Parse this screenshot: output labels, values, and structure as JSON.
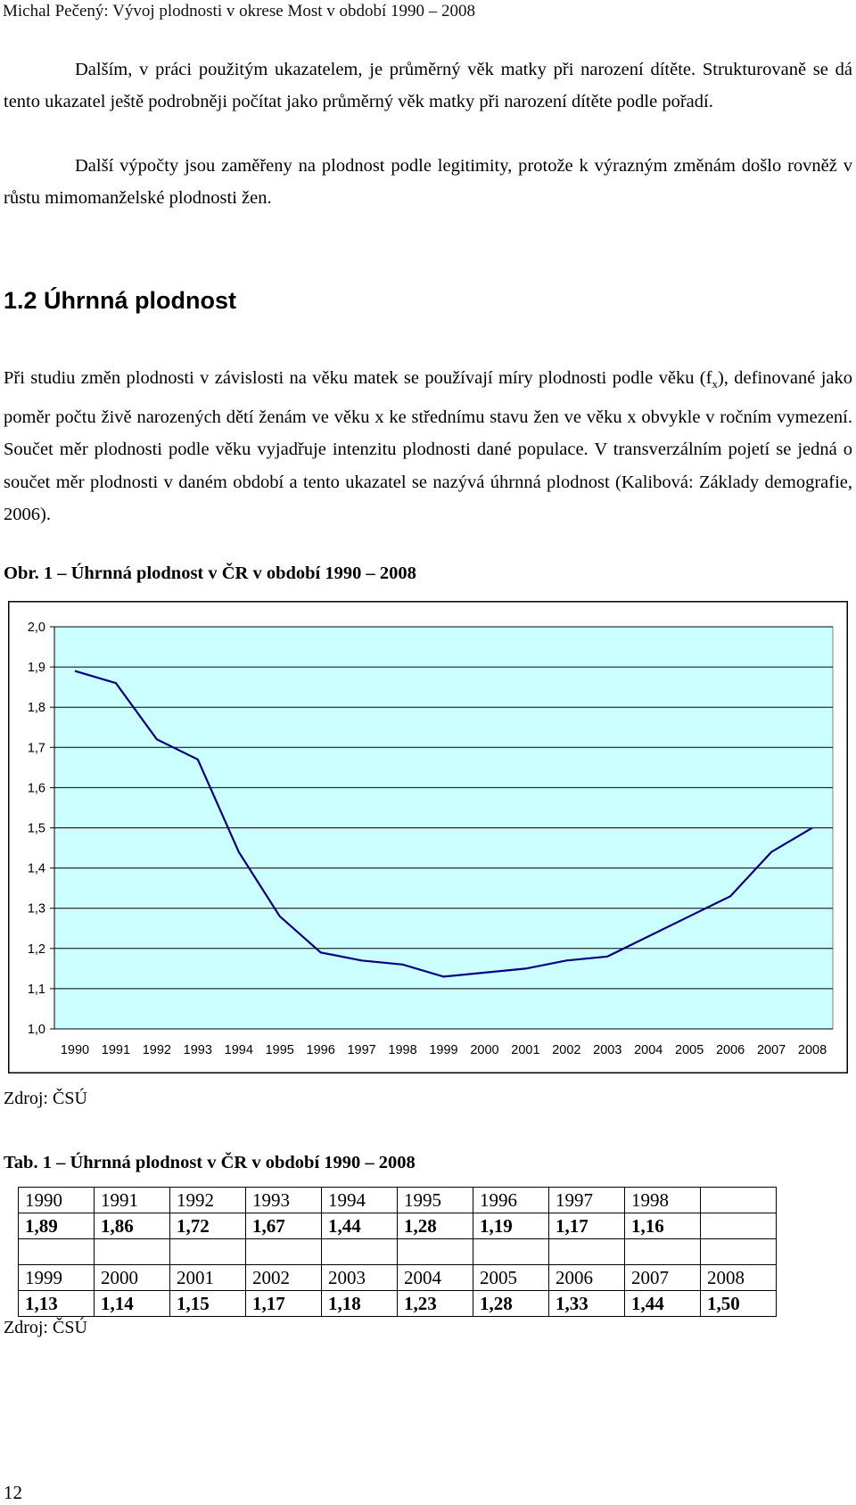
{
  "header": {
    "running_title": "Michal Pečený: Vývoj plodnosti v okrese Most v období 1990 – 2008"
  },
  "intro": {
    "paragraph_1": "Dalším, v práci použitým ukazatelem, je průměrný věk matky při narození dítěte. Strukturovaně se dá tento ukazatel ještě podrobněji počítat jako průměrný věk matky při narození dítěte podle pořadí.",
    "paragraph_2": "Další výpočty jsou zaměřeny na plodnost podle legitimity, protože k výrazným změnám došlo rovněž v růstu mimomanželské plodnosti žen."
  },
  "section": {
    "heading": "1.2 Úhrnná plodnost",
    "p_before_sub": "Při studiu změn plodnosti v závislosti na věku matek se používají míry plodnosti podle věku (f",
    "subscript": "x",
    "p_after_sub": "), definované jako poměr počtu živě narozených dětí ženám ve věku x ke střednímu stavu žen ve věku x obvykle v ročním vymezení. Součet měr plodnosti podle věku vyjadřuje intenzitu plodnosti dané populace. V transverzálním pojetí se jedná o součet měr plodnosti v daném období a tento ukazatel se nazývá úhrnná plodnost (Kalibová: Základy demografie, 2006)."
  },
  "figure": {
    "caption": "Obr. 1 – Úhrnná plodnost v ČR v období 1990 – 2008",
    "source": "Zdroj: ČSÚ"
  },
  "chart_data": {
    "type": "line",
    "title": "",
    "xlabel": "",
    "ylabel": "",
    "x": [
      "1990",
      "1991",
      "1992",
      "1993",
      "1994",
      "1995",
      "1996",
      "1997",
      "1998",
      "1999",
      "2000",
      "2001",
      "2002",
      "2003",
      "2004",
      "2005",
      "2006",
      "2007",
      "2008"
    ],
    "series": [
      {
        "values": [
          1.89,
          1.86,
          1.72,
          1.67,
          1.44,
          1.28,
          1.19,
          1.17,
          1.16,
          1.13,
          1.14,
          1.15,
          1.17,
          1.18,
          1.23,
          1.28,
          1.33,
          1.44,
          1.5
        ]
      }
    ],
    "ylim": [
      1.0,
      2.0
    ],
    "yticks": [
      "1,0",
      "1,1",
      "1,2",
      "1,3",
      "1,4",
      "1,5",
      "1,6",
      "1,7",
      "1,8",
      "1,9",
      "2,0"
    ],
    "grid": "horizontal",
    "legend": "none",
    "colors": {
      "plot_bg": "#ccffff",
      "line": "#000080",
      "grid": "#000000"
    }
  },
  "table": {
    "caption": "Tab. 1 – Úhrnná plodnost v ČR v období 1990 – 2008",
    "rows": [
      [
        "1990",
        "1991",
        "1992",
        "1993",
        "1994",
        "1995",
        "1996",
        "1997",
        "1998",
        ""
      ],
      [
        "1,89",
        "1,86",
        "1,72",
        "1,67",
        "1,44",
        "1,28",
        "1,19",
        "1,17",
        "1,16",
        ""
      ],
      [
        "",
        "",
        "",
        "",
        "",
        "",
        "",
        "",
        "",
        ""
      ],
      [
        "1999",
        "2000",
        "2001",
        "2002",
        "2003",
        "2004",
        "2005",
        "2006",
        "2007",
        "2008"
      ],
      [
        "1,13",
        "1,14",
        "1,15",
        "1,17",
        "1,18",
        "1,23",
        "1,28",
        "1,33",
        "1,44",
        "1,50"
      ]
    ],
    "source": "Zdroj: ČSÚ"
  },
  "footer": {
    "page_number": "12"
  }
}
